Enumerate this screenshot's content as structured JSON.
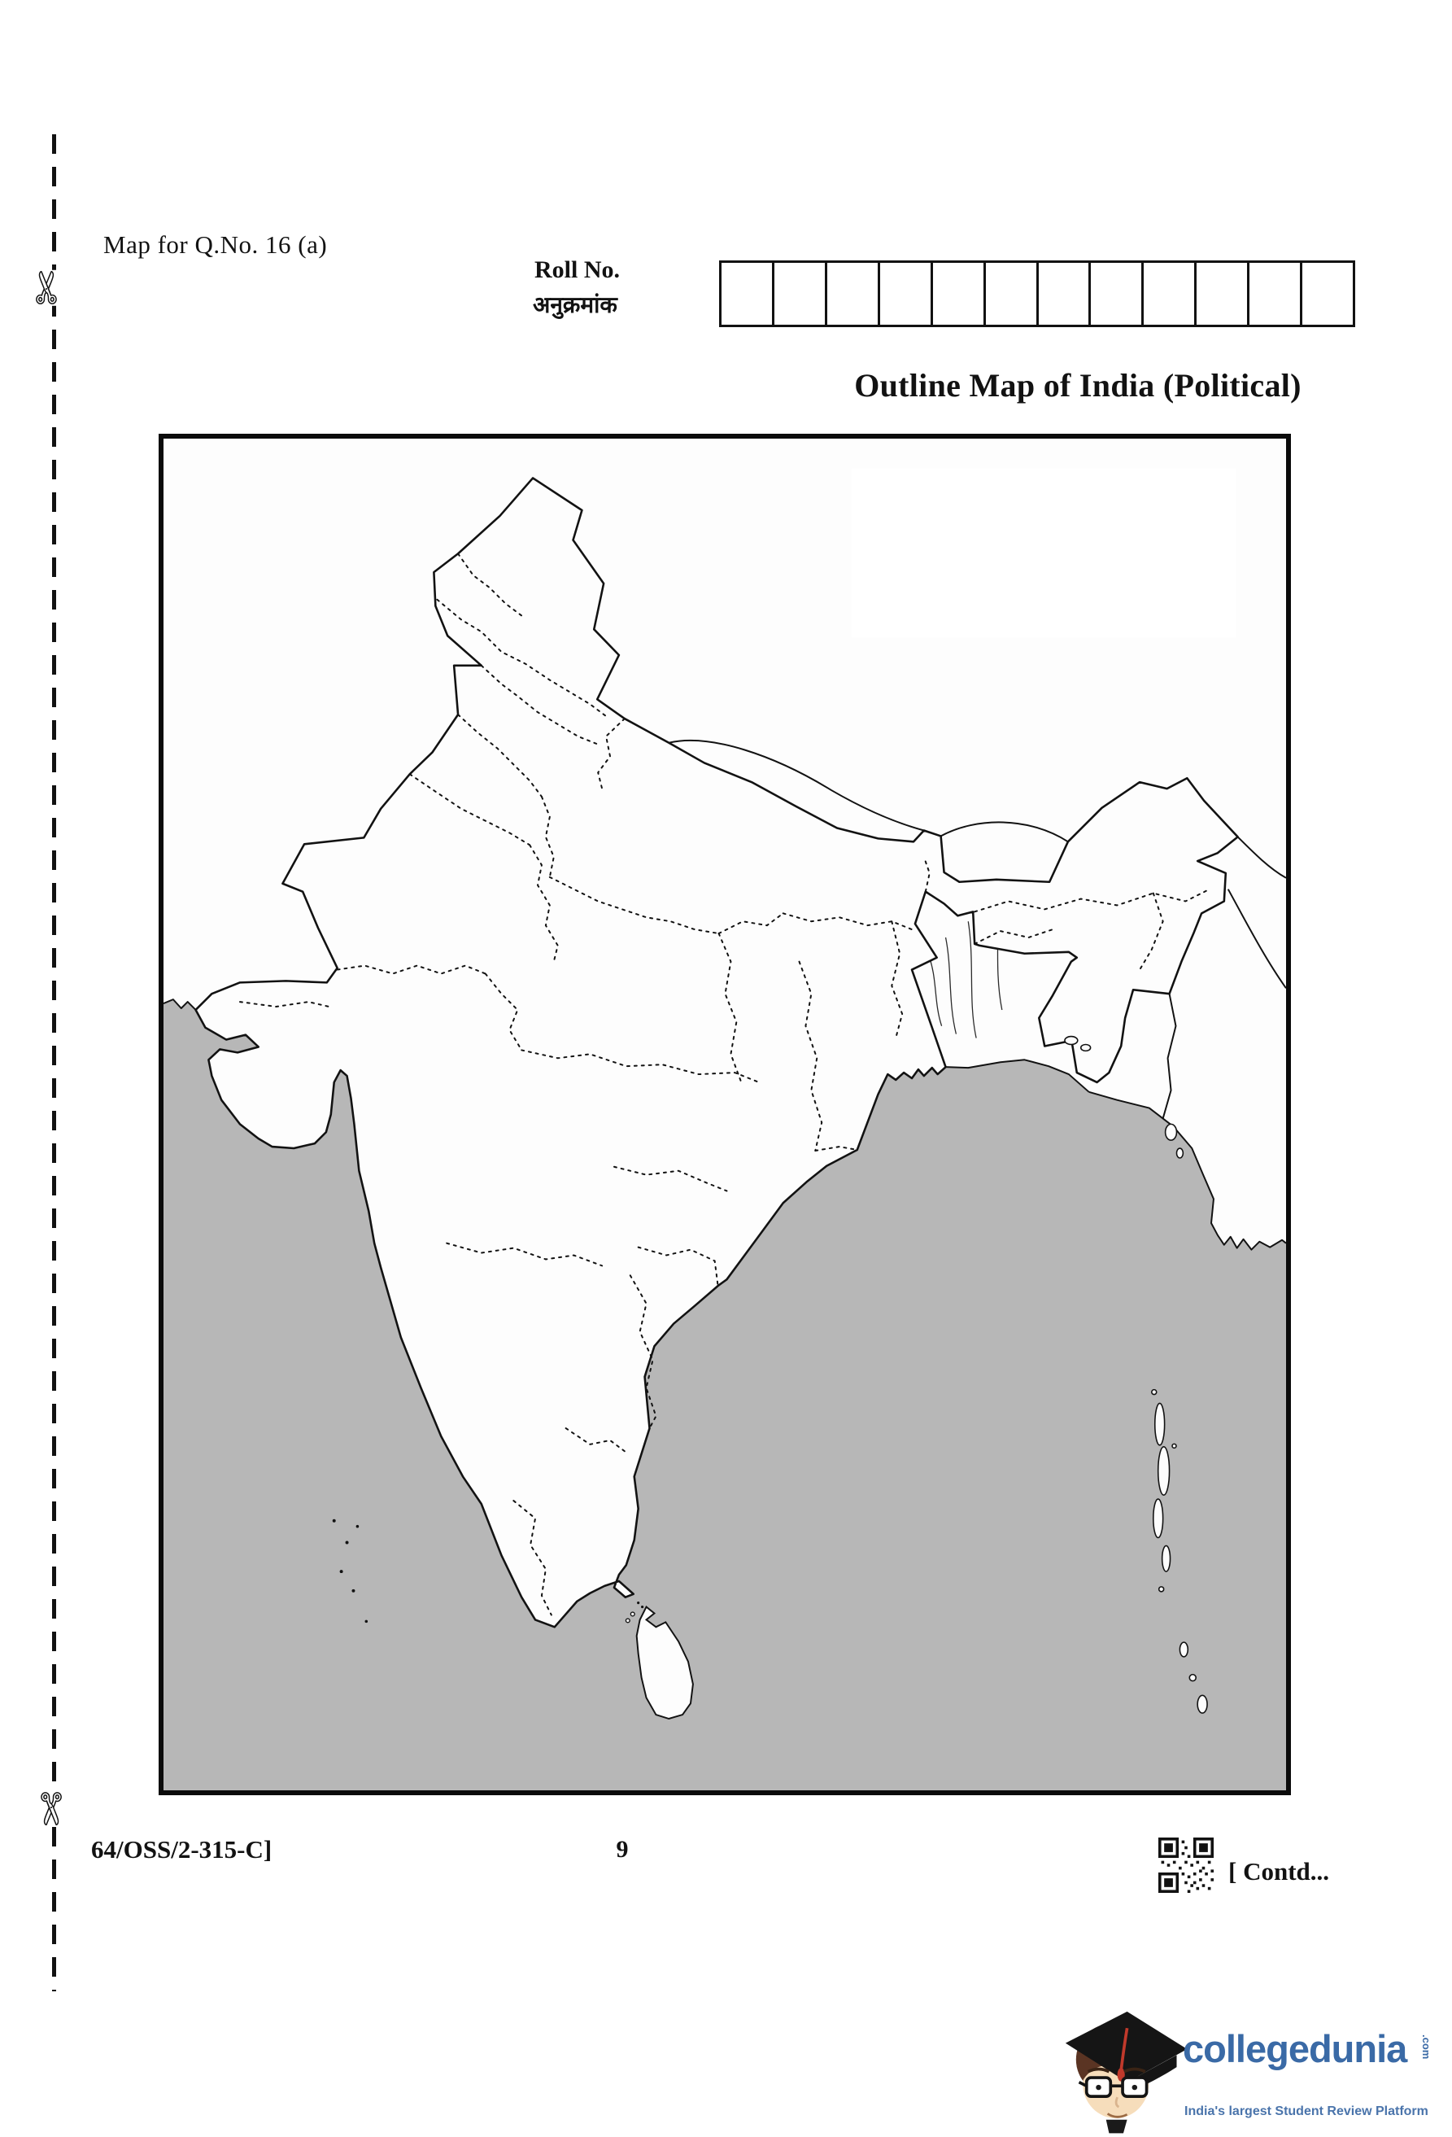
{
  "page": {
    "map_note": "Map for Q.No. 16 (a)",
    "title": "Outline Map of India (Political)"
  },
  "roll": {
    "label_en": "Roll No.",
    "label_hi": "अनुक्रमांक",
    "box_count": 12
  },
  "footer": {
    "paper_code": "64/OSS/2-315-C]",
    "page_number": "9",
    "contd_note": "[ Contd..."
  },
  "logo": {
    "brand": "collegedunia",
    "tld": ".com",
    "tagline": "India's largest Student Review Platform"
  },
  "icons": {
    "scissors_char": "✄",
    "qr_code": "qr-code"
  },
  "colors": {
    "sea_gray": "#b7b7b7",
    "ink": "#121212",
    "brand_blue": "#3a6aa6",
    "tagline_blue": "#4a74ab",
    "tassel_red": "#c0392b"
  }
}
